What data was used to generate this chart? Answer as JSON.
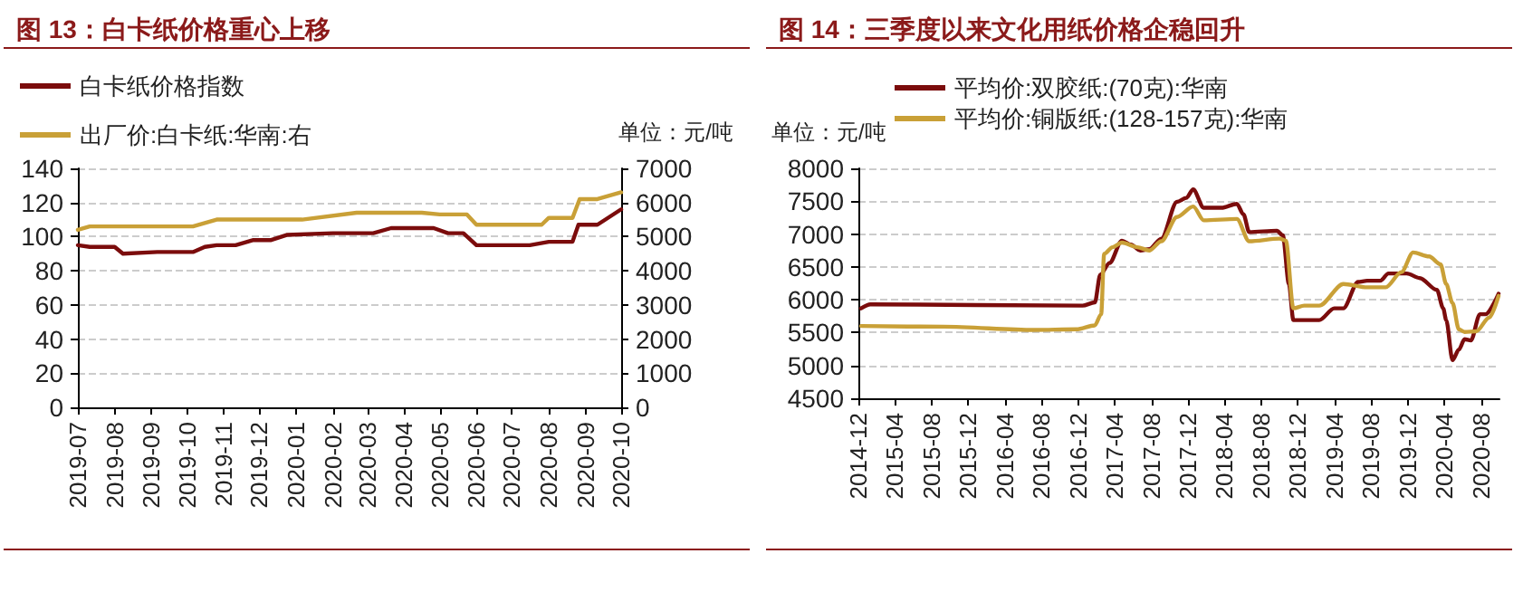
{
  "chart_data": [
    {
      "type": "line",
      "title": "图 13：白卡纸价格重心上移",
      "y2label": "单位：元/吨",
      "xlim": [
        "2019-07",
        "2020-10"
      ],
      "xticks": [
        "2019-07",
        "2019-08",
        "2019-09",
        "2019-10",
        "2019-11",
        "2019-12",
        "2020-01",
        "2020-02",
        "2020-03",
        "2020-04",
        "2020-05",
        "2020-06",
        "2020-07",
        "2020-08",
        "2020-09",
        "2020-10"
      ],
      "ylim": [
        0,
        140
      ],
      "yticks": [
        0,
        20,
        40,
        60,
        80,
        100,
        120,
        140
      ],
      "y2lim": [
        0,
        7000
      ],
      "y2ticks": [
        0,
        1000,
        2000,
        3000,
        4000,
        5000,
        6000,
        7000
      ],
      "grid": "y",
      "legend": "top left",
      "line_style": "solid",
      "series": [
        {
          "name": "白卡纸价格指数",
          "color": "#7b0c0c",
          "x": [
            "2019-07-01",
            "2019-07-11",
            "2019-08-01",
            "2019-08-08",
            "2019-09-06",
            "2019-10-06",
            "2019-10-16",
            "2019-10-26",
            "2019-11-11",
            "2019-11-26",
            "2019-12-11",
            "2019-12-24",
            "2020-02-01",
            "2020-03-06",
            "2020-03-21",
            "2020-04-26",
            "2020-05-08",
            "2020-05-21",
            "2020-06-01",
            "2020-07-16",
            "2020-08-01",
            "2020-08-21",
            "2020-08-26",
            "2020-09-11",
            "2020-10-01"
          ],
          "values": [
            95,
            94,
            94,
            90,
            91,
            91,
            94,
            95,
            95,
            98,
            98,
            101,
            102,
            102,
            105,
            105,
            102,
            102,
            95,
            95,
            97,
            97,
            107,
            107,
            116
          ]
        },
        {
          "name": "出厂价:白卡纸:华南:右",
          "color": "#c9a037",
          "axis": "y2",
          "x": [
            "2019-07-01",
            "2019-07-11",
            "2019-10-06",
            "2019-10-26",
            "2020-01-06",
            "2020-02-21",
            "2020-04-16",
            "2020-05-01",
            "2020-05-24",
            "2020-06-01",
            "2020-07-26",
            "2020-08-01",
            "2020-08-21",
            "2020-08-27",
            "2020-09-11",
            "2020-10-01"
          ],
          "values": [
            5200,
            5300,
            5300,
            5500,
            5500,
            5700,
            5700,
            5650,
            5650,
            5350,
            5350,
            5550,
            5550,
            6100,
            6100,
            6300
          ]
        }
      ]
    },
    {
      "type": "line",
      "title": "图 14：三季度以来文化用纸价格企稳回升",
      "ylabel": "单位：元/吨",
      "xlim": [
        "2014-12",
        "2020-10"
      ],
      "xticks": [
        "2014-12",
        "2015-04",
        "2015-08",
        "2015-12",
        "2016-04",
        "2016-08",
        "2016-12",
        "2017-04",
        "2017-08",
        "2017-12",
        "2018-04",
        "2018-08",
        "2018-12",
        "2019-04",
        "2019-08",
        "2019-12",
        "2020-04",
        "2020-08"
      ],
      "ylim": [
        4500,
        8000
      ],
      "yticks": [
        4500,
        5000,
        5500,
        6000,
        6500,
        7000,
        7500,
        8000
      ],
      "grid": "y",
      "legend": "top",
      "line_style": "solid",
      "series": [
        {
          "name": "平均价:双胶纸:(70克):华南",
          "color": "#7b0c0c",
          "x": [
            "2014-12-10",
            "2015-01-10",
            "2016-12-15",
            "2017-01-25",
            "2017-02-12",
            "2017-03-15",
            "2017-04-25",
            "2017-05-25",
            "2017-06-25",
            "2017-07-25",
            "2017-09-03",
            "2017-10-25",
            "2017-11-25",
            "2017-12-18",
            "2018-01-22",
            "2018-03-22",
            "2018-05-12",
            "2018-06-03",
            "2018-06-22",
            "2018-09-22",
            "2018-10-12",
            "2018-11-01",
            "2018-11-16",
            "2019-01-01",
            "2019-02-10",
            "2019-04-01",
            "2019-05-01",
            "2019-06-19",
            "2019-07-19",
            "2019-09-01",
            "2019-09-28",
            "2019-11-28",
            "2020-01-10",
            "2020-03-07",
            "2020-03-28",
            "2020-04-07",
            "2020-04-28",
            "2020-05-19",
            "2020-06-07",
            "2020-06-28",
            "2020-07-28",
            "2020-08-16",
            "2020-09-28"
          ],
          "values": [
            5870,
            5930,
            5910,
            5960,
            6380,
            6560,
            6900,
            6840,
            6750,
            6770,
            6930,
            7490,
            7550,
            7680,
            7400,
            7400,
            7460,
            7300,
            7030,
            7050,
            6980,
            6240,
            5690,
            5690,
            5690,
            5870,
            5870,
            6270,
            6290,
            6290,
            6400,
            6400,
            6330,
            6150,
            5870,
            5690,
            5080,
            5240,
            5400,
            5380,
            5780,
            5780,
            6090
          ]
        },
        {
          "name": "平均价:铜版纸:(128-157克):华南",
          "color": "#c9a037",
          "x": [
            "2014-12-10",
            "2015-09-10",
            "2016-07-07",
            "2016-11-25",
            "2017-01-25",
            "2017-02-15",
            "2017-02-25",
            "2017-03-25",
            "2017-04-25",
            "2017-06-15",
            "2017-07-25",
            "2017-09-03",
            "2017-10-25",
            "2017-12-18",
            "2018-01-22",
            "2018-05-12",
            "2018-06-22",
            "2018-10-01",
            "2018-10-22",
            "2018-11-16",
            "2018-12-22",
            "2019-02-10",
            "2019-05-01",
            "2019-07-19",
            "2019-09-19",
            "2019-11-10",
            "2019-12-19",
            "2020-02-10",
            "2020-03-19",
            "2020-04-07",
            "2020-04-28",
            "2020-05-19",
            "2020-06-07",
            "2020-07-16",
            "2020-08-28",
            "2020-09-28"
          ],
          "values": [
            5600,
            5590,
            5540,
            5550,
            5610,
            5780,
            6700,
            6800,
            6870,
            6800,
            6750,
            6890,
            7260,
            7420,
            7210,
            7230,
            6890,
            6930,
            6900,
            5870,
            5910,
            5910,
            6240,
            6190,
            6190,
            6420,
            6720,
            6660,
            6540,
            6240,
            5950,
            5550,
            5510,
            5520,
            5730,
            6060
          ]
        }
      ]
    }
  ]
}
